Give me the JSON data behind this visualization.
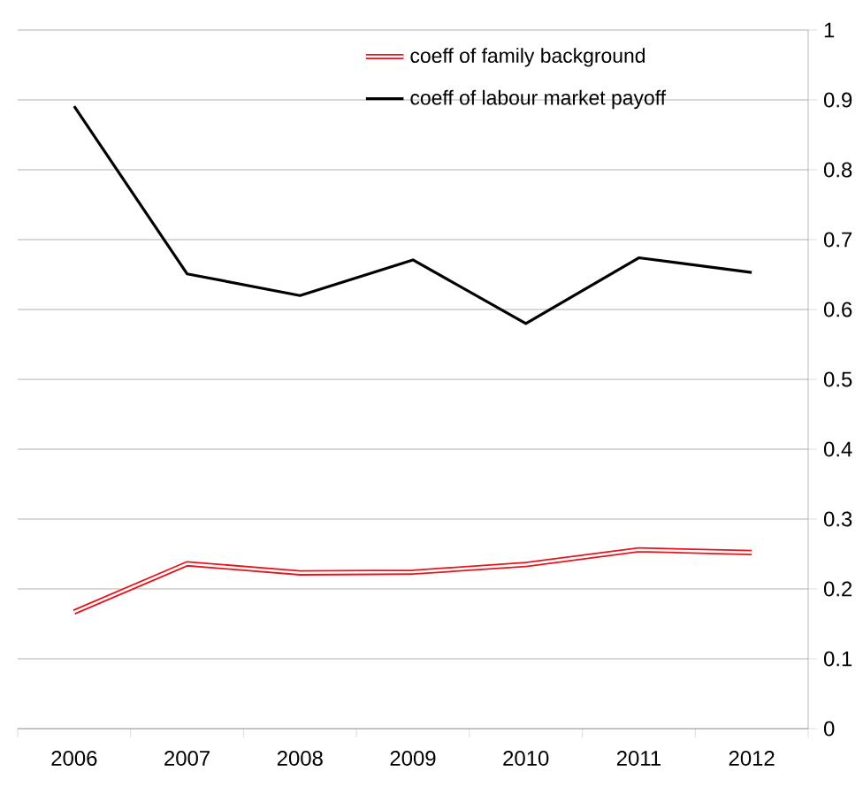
{
  "chart_data": {
    "type": "line",
    "categories": [
      "2006",
      "2007",
      "2008",
      "2009",
      "2010",
      "2011",
      "2012"
    ],
    "series": [
      {
        "name": "coeff of family background",
        "color": "#e8141b",
        "values": [
          0.167,
          0.236,
          0.223,
          0.224,
          0.235,
          0.256,
          0.252
        ]
      },
      {
        "name": "coeff of labour market payoff",
        "color": "#000000",
        "values": [
          0.891,
          0.651,
          0.62,
          0.671,
          0.58,
          0.674,
          0.653
        ]
      }
    ],
    "ylim": [
      0,
      1
    ],
    "yticks": [
      0,
      0.1,
      0.2,
      0.3,
      0.4,
      0.5,
      0.6,
      0.7,
      0.8,
      0.9,
      1
    ],
    "grid": "y",
    "legend": "top right",
    "marker": "none",
    "line_style": "solid"
  }
}
